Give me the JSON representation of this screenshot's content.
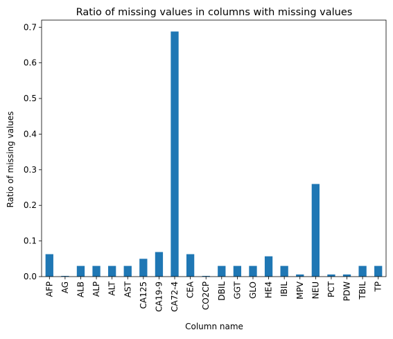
{
  "chart_data": {
    "type": "bar",
    "title": "Ratio of missing values in columns with missing values",
    "xlabel": "Column name",
    "ylabel": "Ratio of missing values",
    "categories": [
      "AFP",
      "AG",
      "ALB",
      "ALP",
      "ALT",
      "AST",
      "CA125",
      "CA19-9",
      "CA72-4",
      "CEA",
      "CO2CP",
      "DBIL",
      "GGT",
      "GLO",
      "HE4",
      "IBIL",
      "MPV",
      "NEU",
      "PCT",
      "PDW",
      "TBIL",
      "TP"
    ],
    "values": [
      0.063,
      0.002,
      0.03,
      0.03,
      0.03,
      0.03,
      0.05,
      0.069,
      0.688,
      0.063,
      0.002,
      0.03,
      0.03,
      0.03,
      0.057,
      0.03,
      0.006,
      0.26,
      0.006,
      0.006,
      0.03,
      0.03
    ],
    "ylim": [
      0,
      0.72
    ],
    "yticks": [
      0.0,
      0.1,
      0.2,
      0.3,
      0.4,
      0.5,
      0.6,
      0.7
    ],
    "ytick_labels": [
      "0.0",
      "0.1",
      "0.2",
      "0.3",
      "0.4",
      "0.5",
      "0.6",
      "0.7"
    ],
    "bar_color": "#1f77b4",
    "grid": false,
    "legend": "none"
  }
}
